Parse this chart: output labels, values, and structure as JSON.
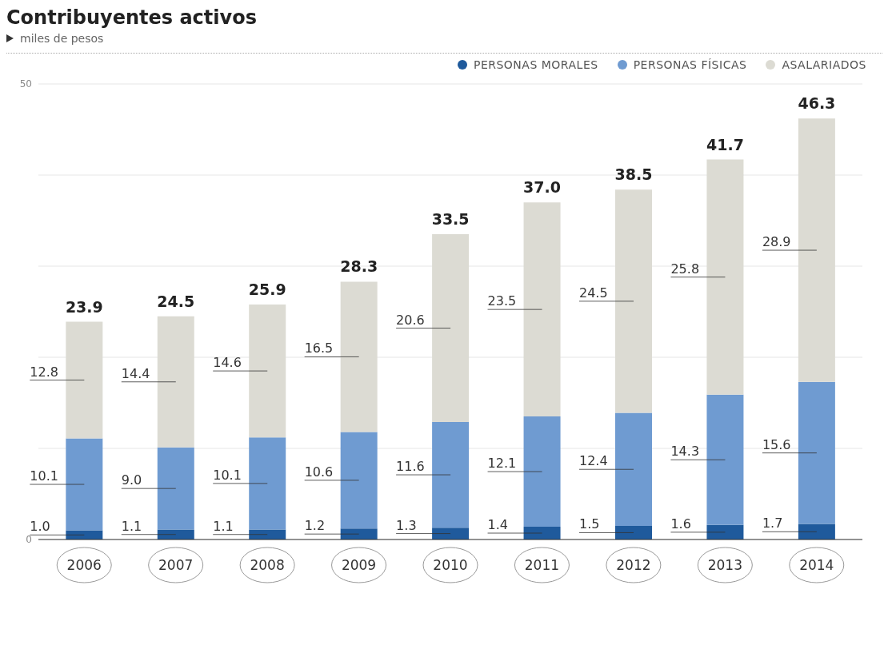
{
  "chart_data": {
    "type": "bar",
    "title": "Contribuyentes activos",
    "subtitle": "miles de pesos",
    "categories": [
      "2006",
      "2007",
      "2008",
      "2009",
      "2010",
      "2011",
      "2012",
      "2013",
      "2014"
    ],
    "series": [
      {
        "name": "PERSONAS MORALES",
        "color": "#1f5a9c",
        "values": [
          1.0,
          1.1,
          1.1,
          1.2,
          1.3,
          1.4,
          1.5,
          1.6,
          1.7
        ],
        "value_labels": [
          "1.0",
          "1.1",
          "1.1",
          "1.2",
          "1.3",
          "1.4",
          "1.5",
          "1.6",
          "1.7"
        ]
      },
      {
        "name": "PERSONAS FÍSICAS",
        "color": "#6f9bd1",
        "values": [
          10.1,
          9.0,
          10.1,
          10.6,
          11.6,
          12.1,
          12.4,
          14.3,
          15.6
        ],
        "value_labels": [
          "10.1",
          "9.0",
          "10.1",
          "10.6",
          "11.6",
          "12.1",
          "12.4",
          "14.3",
          "15.6"
        ]
      },
      {
        "name": "ASALARIADOS",
        "color": "#dcdbd3",
        "values": [
          12.8,
          14.4,
          14.6,
          16.5,
          20.6,
          23.5,
          24.5,
          25.8,
          28.9
        ],
        "value_labels": [
          "12.8",
          "14.4",
          "14.6",
          "16.5",
          "20.6",
          "23.5",
          "24.5",
          "25.8",
          "28.9"
        ]
      }
    ],
    "stacked": true,
    "totals": [
      "23.9",
      "24.5",
      "25.9",
      "28.3",
      "33.5",
      "37.0",
      "38.5",
      "41.7",
      "46.3"
    ],
    "ylim": [
      0,
      50
    ],
    "yticks": [
      0,
      {
        "value": 10,
        "label": null
      },
      {
        "value": 20,
        "label": null
      },
      {
        "value": 30,
        "label": null
      },
      {
        "value": 40,
        "label": null
      },
      50
    ],
    "grid": "y",
    "legend": "top right"
  }
}
